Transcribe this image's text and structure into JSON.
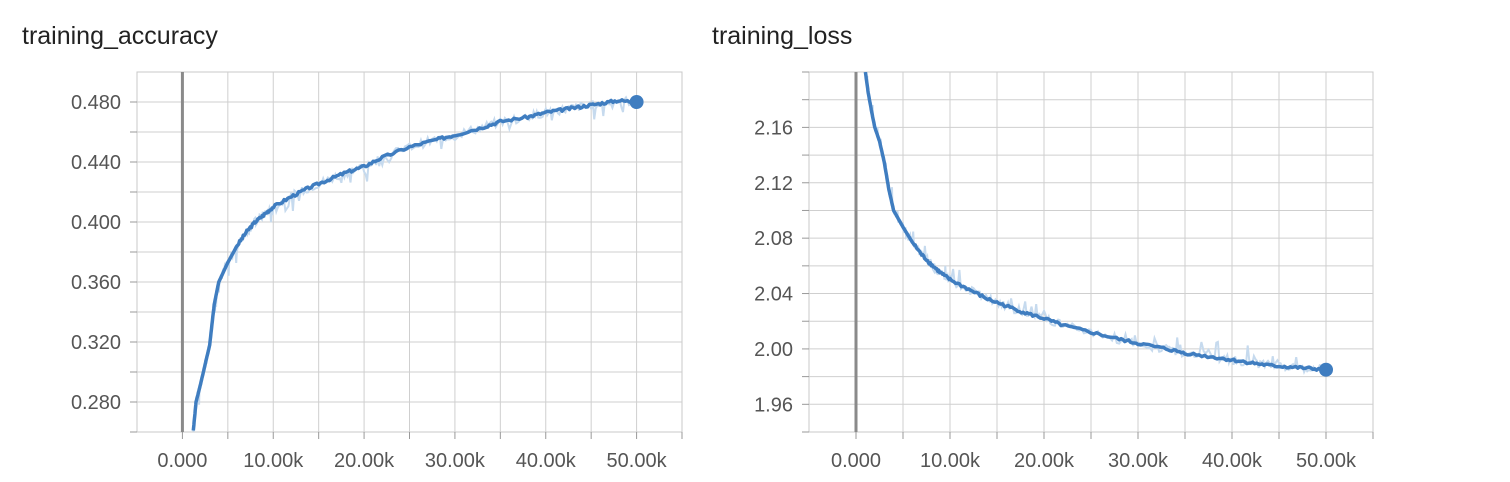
{
  "chart_data": [
    {
      "type": "line",
      "title": "training_accuracy",
      "xlim": [
        -5000,
        55000
      ],
      "ylim": [
        0.26,
        0.5
      ],
      "x_ticks": [
        0,
        10000,
        20000,
        30000,
        40000,
        50000
      ],
      "x_tick_labels": [
        "0.000",
        "10.00k",
        "20.00k",
        "30.00k",
        "40.00k",
        "50.00k"
      ],
      "y_ticks": [
        0.28,
        0.32,
        0.36,
        0.4,
        0.44,
        0.48
      ],
      "y_tick_labels": [
        "0.280",
        "0.320",
        "0.360",
        "0.400",
        "0.440",
        "0.480"
      ],
      "grid": true,
      "color": "#3f7dc0",
      "raw_color": "#c6daee",
      "series": [
        {
          "x": [
            1200,
            1500,
            2000,
            2500,
            3000,
            3500,
            4000,
            5000,
            6000,
            7000,
            8000,
            9000,
            10000,
            12000,
            14000,
            16000,
            18000,
            20000,
            22000,
            25000,
            28000,
            30000,
            33000,
            35000,
            38000,
            40000,
            42000,
            44000,
            46000,
            48000,
            50000
          ],
          "y": [
            0.261,
            0.28,
            0.292,
            0.305,
            0.318,
            0.345,
            0.36,
            0.373,
            0.384,
            0.393,
            0.4,
            0.405,
            0.41,
            0.417,
            0.423,
            0.428,
            0.433,
            0.437,
            0.443,
            0.45,
            0.455,
            0.458,
            0.463,
            0.467,
            0.47,
            0.473,
            0.475,
            0.477,
            0.479,
            0.481,
            0.48
          ]
        }
      ]
    },
    {
      "type": "line",
      "title": "training_loss",
      "xlim": [
        -5000,
        55000
      ],
      "ylim": [
        1.94,
        2.2
      ],
      "x_ticks": [
        0,
        10000,
        20000,
        30000,
        40000,
        50000
      ],
      "x_tick_labels": [
        "0.000",
        "10.00k",
        "20.00k",
        "30.00k",
        "40.00k",
        "50.00k"
      ],
      "y_ticks": [
        1.96,
        2.0,
        2.04,
        2.08,
        2.12,
        2.16
      ],
      "y_tick_labels": [
        "1.96",
        "2.00",
        "2.04",
        "2.08",
        "2.12",
        "2.16"
      ],
      "grid": true,
      "color": "#3f7dc0",
      "raw_color": "#c6daee",
      "series": [
        {
          "x": [
            1000,
            1300,
            1700,
            2000,
            2500,
            3000,
            3500,
            4000,
            5000,
            6000,
            7000,
            8000,
            9000,
            10000,
            12000,
            14000,
            16000,
            18000,
            20000,
            22000,
            25000,
            28000,
            30000,
            33000,
            35000,
            38000,
            40000,
            42000,
            44000,
            46000,
            48000,
            50000
          ],
          "y": [
            2.2,
            2.185,
            2.17,
            2.16,
            2.15,
            2.135,
            2.115,
            2.1,
            2.088,
            2.077,
            2.068,
            2.061,
            2.055,
            2.05,
            2.043,
            2.036,
            2.031,
            2.026,
            2.022,
            2.017,
            2.012,
            2.007,
            2.004,
            2.0,
            1.997,
            1.994,
            1.992,
            1.99,
            1.988,
            1.987,
            1.986,
            1.985
          ]
        }
      ]
    }
  ]
}
